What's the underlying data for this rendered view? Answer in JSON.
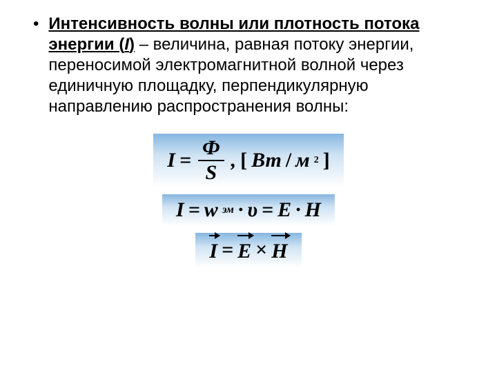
{
  "bullet": "•",
  "definition": {
    "term": "Интенсивность волны или плотность потока энергии (",
    "symbol": "I",
    "term_close": ")",
    "rest": " – величина, равная потоку энергии, переносимой электромагнитной волной через единичную площадку, перпендикулярную направлению распространения волны:"
  },
  "formulas": {
    "f1": {
      "lhs": "I",
      "eq": "=",
      "num": "Ф",
      "den": "S",
      "comma": ",",
      "unit_open": "[",
      "unit_w": "Вт",
      "unit_slash": " / ",
      "unit_m": "м",
      "unit_exp": "2",
      "unit_close": "]"
    },
    "f2": {
      "lhs": "I",
      "eq1": "=",
      "w": "w",
      "wsub": "эм",
      "dot1": "·",
      "v": "υ",
      "eq2": "=",
      "E": "E",
      "dot2": "·",
      "H": "H"
    },
    "f3": {
      "I": "I",
      "eq": "=",
      "E": "E",
      "cross": "×",
      "H": "H"
    }
  },
  "style": {
    "gradient_top": "#86b6e0",
    "gradient_mid": "#cfe3f3",
    "gradient_bottom": "#ffffff",
    "text_color": "#000000",
    "body_fontsize": 24,
    "formula_fontsize": 30
  }
}
